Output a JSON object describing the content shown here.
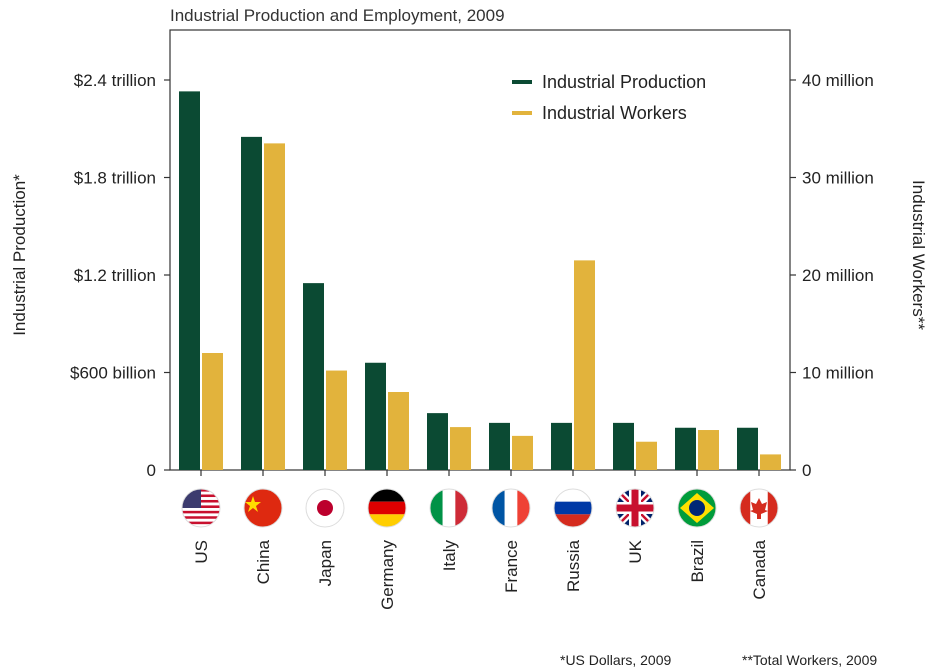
{
  "chart_data": {
    "type": "bar",
    "title": "Industrial Production and Employment, 2009",
    "categories": [
      "US",
      "China",
      "Japan",
      "Germany",
      "Italy",
      "France",
      "Russia",
      "UK",
      "Brazil",
      "Canada"
    ],
    "series": [
      {
        "name": "Industrial Production",
        "axis": "left",
        "color": "#0b4a33",
        "values": [
          2.33,
          2.05,
          1.15,
          0.66,
          0.35,
          0.29,
          0.29,
          0.29,
          0.26,
          0.26
        ]
      },
      {
        "name": "Industrial Workers",
        "axis": "right",
        "color": "#e2b33c",
        "values": [
          12,
          33.5,
          10.2,
          8,
          4.4,
          3.5,
          21.5,
          2.9,
          4.1,
          1.6
        ]
      }
    ],
    "ylabel": "Industrial Production*",
    "y2label": "Industrial Workers**",
    "ylim": [
      0,
      2.4
    ],
    "y2lim": [
      0,
      40
    ],
    "yticks": [
      0,
      0.6,
      1.2,
      1.8,
      2.4
    ],
    "yticklabels": [
      "0",
      "$600 billion",
      "$1.2 trillion",
      "$1.8 trillion",
      "$2.4 trillion"
    ],
    "y2ticks": [
      0,
      10,
      20,
      30,
      40
    ],
    "y2ticklabels": [
      "0",
      "10 million",
      "20 million",
      "30 million",
      "40 million"
    ],
    "legend_placement": "top-right",
    "grid": false,
    "flags": [
      "us-flag-icon",
      "china-flag-icon",
      "japan-flag-icon",
      "germany-flag-icon",
      "italy-flag-icon",
      "france-flag-icon",
      "russia-flag-icon",
      "uk-flag-icon",
      "brazil-flag-icon",
      "canada-flag-icon"
    ]
  },
  "footnotes": {
    "left": "*US Dollars, 2009",
    "right": "**Total Workers, 2009"
  }
}
